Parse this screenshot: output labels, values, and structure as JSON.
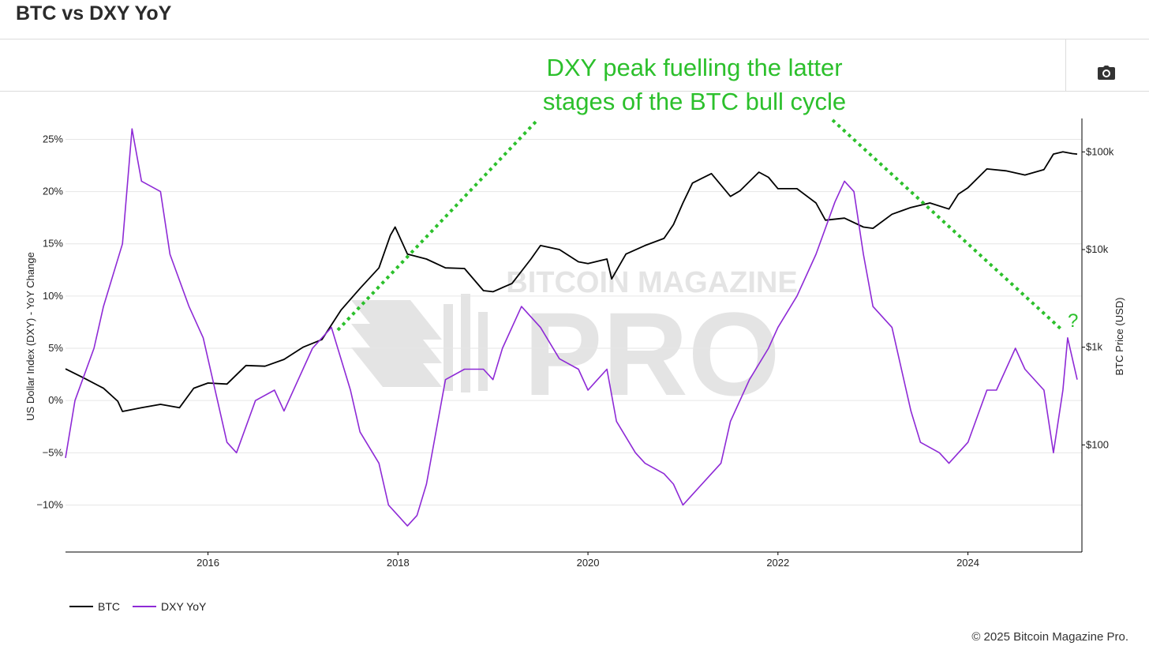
{
  "page": {
    "title": "BTC vs DXY YoY"
  },
  "toolbar": {
    "camera_icon": "camera-icon"
  },
  "annotation": {
    "line1": "DXY peak fuelling the latter",
    "line2": "stages of the BTC bull cycle",
    "marker": "?",
    "color": "#2cc02c"
  },
  "watermark": {
    "line1": "BITCOIN MAGAZINE",
    "line2": "PRO"
  },
  "legend": {
    "btc": "BTC",
    "dxy": "DXY YoY"
  },
  "footer": {
    "copyright": "© 2025 Bitcoin Magazine Pro."
  },
  "chart_data": {
    "type": "line",
    "title": "BTC vs DXY YoY",
    "xlabel": "",
    "ylabel_left": "US Dollar Index (DXY) - YoY Change",
    "ylabel_right": "BTC Price (USD)",
    "x_ticks": [
      "2016",
      "2018",
      "2020",
      "2022",
      "2024"
    ],
    "y_left_ticks": [
      "−10%",
      "−5%",
      "0%",
      "5%",
      "10%",
      "15%",
      "20%",
      "25%"
    ],
    "y_left_range": [
      -14.5,
      27
    ],
    "y_right_ticks": [
      "$100",
      "$1k",
      "$10k",
      "$100k"
    ],
    "y_right_scale": "log",
    "y_right_range": [
      8,
      220000
    ],
    "x_range": [
      2014.5,
      2025.2
    ],
    "grid": true,
    "legend_position": "bottom-left",
    "series": [
      {
        "name": "BTC",
        "axis": "right",
        "color": "#000000",
        "x": [
          2014.5,
          2014.7,
          2014.9,
          2015.05,
          2015.1,
          2015.3,
          2015.5,
          2015.7,
          2015.85,
          2016.0,
          2016.2,
          2016.4,
          2016.6,
          2016.8,
          2017.0,
          2017.2,
          2017.4,
          2017.6,
          2017.8,
          2017.92,
          2017.97,
          2018.1,
          2018.3,
          2018.5,
          2018.7,
          2018.9,
          2019.0,
          2019.2,
          2019.4,
          2019.5,
          2019.7,
          2019.9,
          2020.0,
          2020.2,
          2020.25,
          2020.4,
          2020.6,
          2020.8,
          2020.9,
          2021.0,
          2021.1,
          2021.3,
          2021.5,
          2021.6,
          2021.8,
          2021.9,
          2022.0,
          2022.2,
          2022.4,
          2022.5,
          2022.7,
          2022.9,
          2023.0,
          2023.2,
          2023.4,
          2023.6,
          2023.8,
          2023.9,
          2024.0,
          2024.2,
          2024.4,
          2024.6,
          2024.8,
          2024.9,
          2025.0,
          2025.1,
          2025.15
        ],
        "y": [
          600,
          480,
          380,
          280,
          220,
          240,
          260,
          240,
          380,
          430,
          420,
          650,
          640,
          750,
          1000,
          1200,
          2400,
          4000,
          6500,
          14000,
          17000,
          9000,
          8000,
          6500,
          6400,
          3800,
          3700,
          4500,
          8000,
          11000,
          10000,
          7500,
          7200,
          8000,
          5000,
          9000,
          11000,
          13000,
          18000,
          30000,
          48000,
          60000,
          35000,
          40000,
          62000,
          55000,
          42000,
          42000,
          30000,
          20000,
          21000,
          17000,
          16500,
          23000,
          27000,
          30000,
          26000,
          37000,
          43000,
          67000,
          64000,
          58000,
          66000,
          95000,
          100000,
          96000,
          95000
        ]
      },
      {
        "name": "DXY YoY",
        "axis": "left",
        "color": "#8e2ad6",
        "x": [
          2014.5,
          2014.6,
          2014.8,
          2014.9,
          2015.1,
          2015.2,
          2015.3,
          2015.5,
          2015.6,
          2015.8,
          2015.95,
          2016.1,
          2016.2,
          2016.3,
          2016.5,
          2016.7,
          2016.8,
          2017.0,
          2017.1,
          2017.3,
          2017.5,
          2017.6,
          2017.8,
          2017.9,
          2018.0,
          2018.1,
          2018.2,
          2018.3,
          2018.5,
          2018.7,
          2018.9,
          2019.0,
          2019.1,
          2019.3,
          2019.5,
          2019.7,
          2019.9,
          2020.0,
          2020.1,
          2020.2,
          2020.3,
          2020.5,
          2020.6,
          2020.8,
          2020.9,
          2021.0,
          2021.1,
          2021.3,
          2021.4,
          2021.5,
          2021.7,
          2021.9,
          2022.0,
          2022.2,
          2022.4,
          2022.6,
          2022.7,
          2022.8,
          2022.9,
          2023.0,
          2023.2,
          2023.4,
          2023.5,
          2023.7,
          2023.8,
          2024.0,
          2024.2,
          2024.3,
          2024.5,
          2024.6,
          2024.8,
          2024.9,
          2025.0,
          2025.05,
          2025.15
        ],
        "y": [
          -5.5,
          0,
          5,
          9,
          15,
          26,
          21,
          20,
          14,
          9,
          6,
          0,
          -4,
          -5,
          0,
          1,
          -1,
          3,
          5,
          7,
          1,
          -3,
          -6,
          -10,
          -11,
          -12,
          -11,
          -8,
          2,
          3,
          3,
          2,
          5,
          9,
          7,
          4,
          3,
          1,
          2,
          3,
          -2,
          -5,
          -6,
          -7,
          -8,
          -10,
          -9,
          -7,
          -6,
          -2,
          2,
          5,
          7,
          10,
          14,
          19,
          21,
          20,
          14,
          9,
          7,
          -1,
          -4,
          -5,
          -6,
          -4,
          1,
          1,
          5,
          3,
          1,
          -5,
          1,
          6,
          2
        ]
      }
    ]
  }
}
